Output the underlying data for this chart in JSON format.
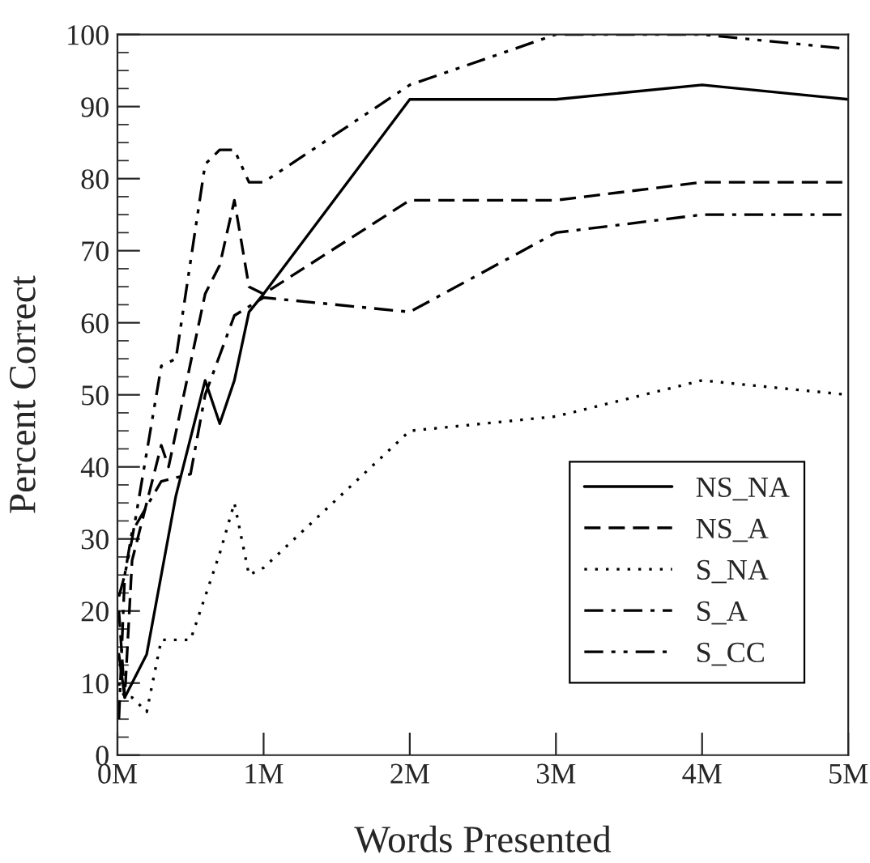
{
  "chart_data": {
    "type": "line",
    "xlabel": "Words Presented",
    "ylabel": "Percent Correct",
    "xlim": [
      0,
      5
    ],
    "ylim": [
      0,
      100
    ],
    "xticks": [
      {
        "value": 0,
        "label": "0M"
      },
      {
        "value": 1,
        "label": "1M"
      },
      {
        "value": 2,
        "label": "2M"
      },
      {
        "value": 3,
        "label": "3M"
      },
      {
        "value": 4,
        "label": "4M"
      },
      {
        "value": 5,
        "label": "5M"
      }
    ],
    "yticks": [
      0,
      10,
      20,
      30,
      40,
      50,
      60,
      70,
      80,
      90,
      100
    ],
    "grid": false,
    "legend": "bottom right",
    "series": [
      {
        "name": "NS_NA",
        "color": "#000000",
        "line_style": "solid",
        "x": [
          0.01,
          0.05,
          0.2,
          0.4,
          0.6,
          0.7,
          0.8,
          0.9,
          1,
          2,
          3,
          4,
          5
        ],
        "values": [
          14,
          8,
          14,
          36,
          52,
          46,
          52,
          61.5,
          64,
          91,
          91,
          93,
          91
        ]
      },
      {
        "name": "NS_A",
        "color": "#000000",
        "line_style": "dashed",
        "x": [
          0.01,
          0.05,
          0.1,
          0.3,
          0.35,
          0.6,
          0.7,
          0.8,
          0.9,
          1,
          2,
          3,
          4,
          5
        ],
        "values": [
          20,
          8,
          27,
          43,
          40,
          64,
          68,
          77,
          65,
          64,
          77,
          77,
          79.5,
          79.5
        ]
      },
      {
        "name": "S_NA",
        "color": "#000000",
        "line_style": "dotted",
        "x": [
          0.01,
          0.05,
          0.1,
          0.2,
          0.3,
          0.5,
          0.7,
          0.8,
          0.9,
          1,
          2,
          3,
          4,
          5
        ],
        "values": [
          10,
          8,
          8,
          6,
          16,
          16,
          28,
          35,
          25,
          26,
          45,
          47,
          52,
          50
        ]
      },
      {
        "name": "S_A",
        "color": "#000000",
        "line_style": "dashdot",
        "x": [
          0.01,
          0.05,
          0.1,
          0.3,
          0.5,
          0.6,
          0.8,
          1,
          2,
          3,
          4,
          5
        ],
        "values": [
          5,
          25,
          31,
          38,
          39,
          50,
          61,
          63.5,
          61.5,
          72.5,
          75,
          75
        ]
      },
      {
        "name": "S_CC",
        "color": "#000000",
        "line_style": "dashdotdot",
        "x": [
          0.01,
          0.05,
          0.1,
          0.2,
          0.3,
          0.4,
          0.6,
          0.7,
          0.8,
          0.9,
          1,
          2,
          3,
          4,
          5
        ],
        "values": [
          22,
          25,
          30,
          42,
          54,
          55,
          82,
          84,
          84,
          79.5,
          79.5,
          93,
          100,
          100,
          98
        ]
      }
    ]
  }
}
